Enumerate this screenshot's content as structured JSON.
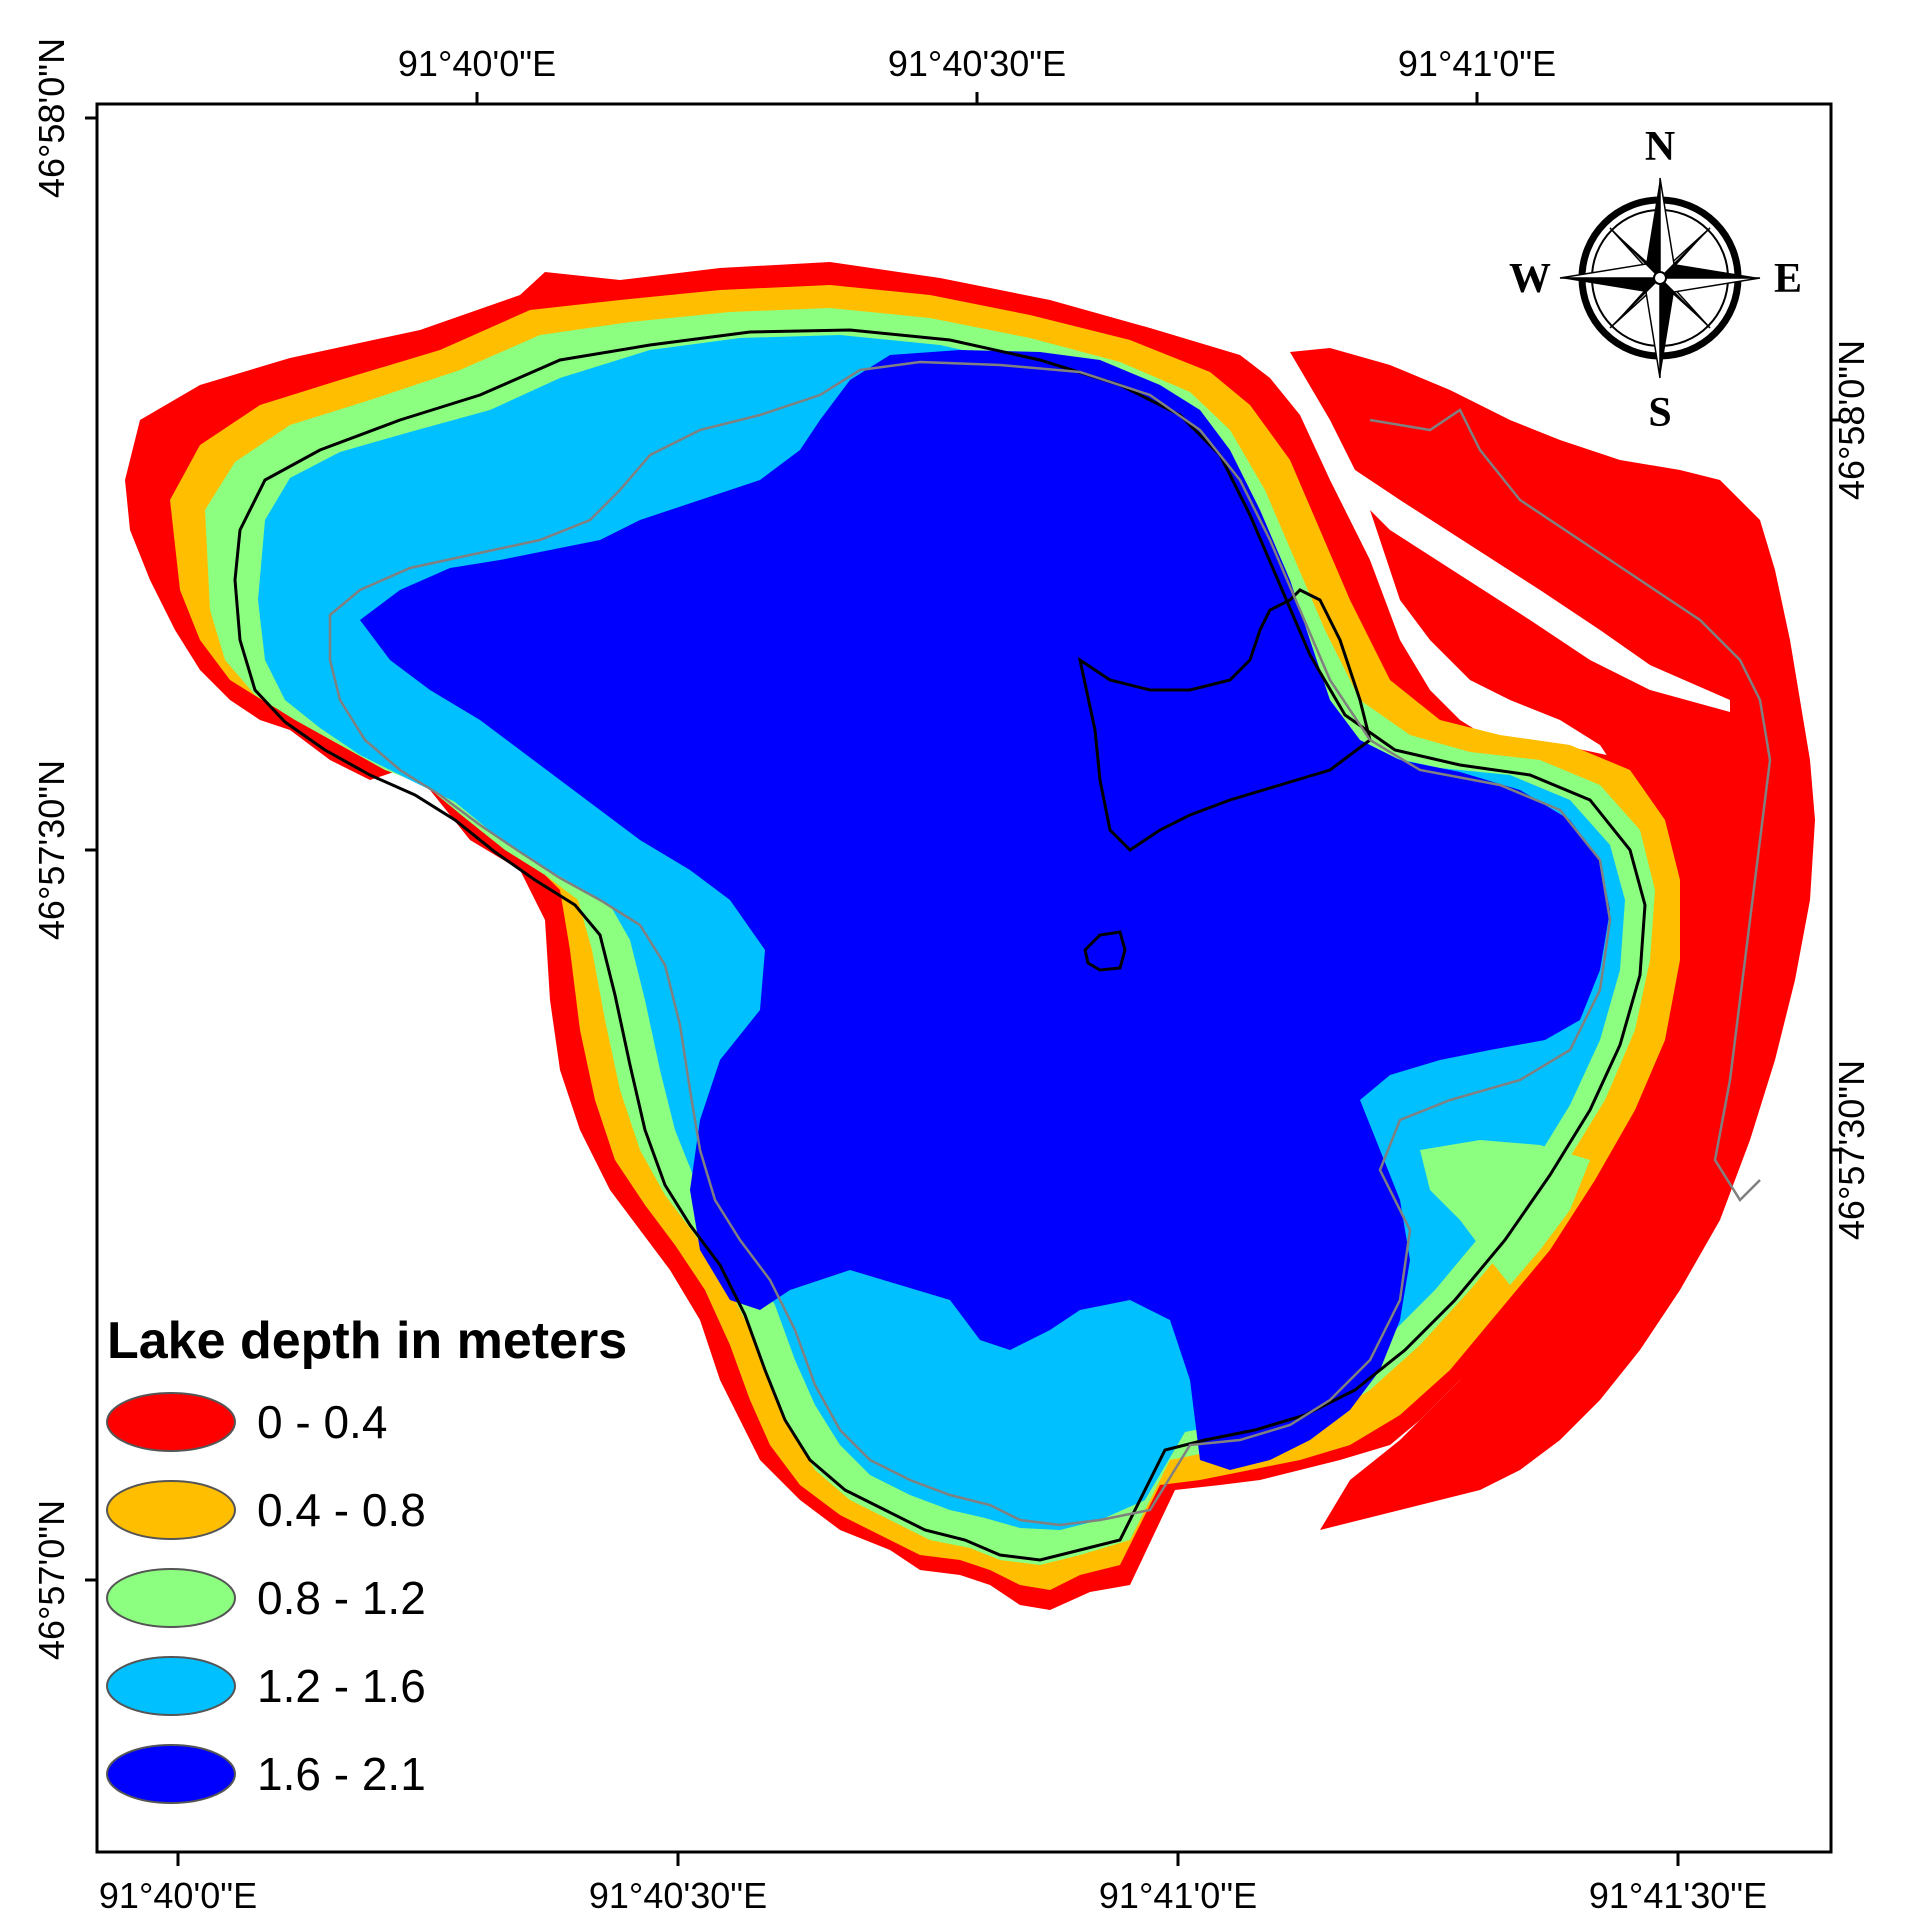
{
  "map": {
    "top_ticks": [
      "91°40'0\"E",
      "91°40'30\"E",
      "91°41'0\"E"
    ],
    "bottom_ticks": [
      "91°40'0\"E",
      "91°40'30\"E",
      "91°41'0\"E",
      "91°41'30\"E"
    ],
    "left_ticks": [
      "46°58'0\"N",
      "46°57'30\"N",
      "46°57'0\"N"
    ],
    "right_ticks": [
      "46°58'0\"N",
      "46°57'30\"N"
    ]
  },
  "compass": {
    "n": "N",
    "s": "S",
    "e": "E",
    "w": "W"
  },
  "legend": {
    "title": "Lake depth in meters",
    "items": [
      {
        "label": "0 - 0.4",
        "color": "#ff0000"
      },
      {
        "label": "0.4 - 0.8",
        "color": "#ffbf00"
      },
      {
        "label": "0.8 - 1.2",
        "color": "#8cff80"
      },
      {
        "label": "1.2 - 1.6",
        "color": "#00c0ff"
      },
      {
        "label": "1.6 - 2.1",
        "color": "#0000ff"
      }
    ]
  }
}
